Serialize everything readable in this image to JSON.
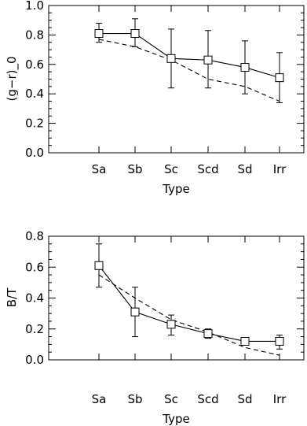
{
  "chart_data": [
    {
      "type": "line",
      "xlabel": "Type",
      "ylabel": "(g−r)_0",
      "categories": [
        "Sa",
        "Sb",
        "Sc",
        "Scd",
        "Sd",
        "Irr"
      ],
      "ylim": [
        0.0,
        1.0
      ],
      "yticks": [
        "0.0",
        "0.2",
        "0.4",
        "0.6",
        "0.8",
        "1.0"
      ],
      "series": [
        {
          "style": "solid with square markers and error bars",
          "values": [
            0.81,
            0.81,
            0.64,
            0.63,
            0.58,
            0.51
          ],
          "err_low": [
            0.75,
            0.72,
            0.44,
            0.44,
            0.4,
            0.34
          ],
          "err_high": [
            0.88,
            0.91,
            0.84,
            0.83,
            0.76,
            0.68
          ]
        },
        {
          "style": "dashed",
          "values": [
            0.77,
            0.72,
            0.63,
            0.5,
            0.45,
            0.35
          ]
        }
      ]
    },
    {
      "type": "line",
      "xlabel": "Type",
      "ylabel": "B/T",
      "categories": [
        "Sa",
        "Sb",
        "Sc",
        "Scd",
        "Sd",
        "Irr"
      ],
      "ylim": [
        0.0,
        0.8
      ],
      "yticks": [
        "0.0",
        "0.2",
        "0.4",
        "0.6",
        "0.8"
      ],
      "series": [
        {
          "style": "solid with square markers and error bars",
          "values": [
            0.61,
            0.31,
            0.23,
            0.17,
            0.12,
            0.12
          ],
          "err_low": [
            0.47,
            0.15,
            0.16,
            0.14,
            0.1,
            0.07
          ],
          "err_high": [
            0.75,
            0.47,
            0.29,
            0.2,
            0.14,
            0.16
          ]
        },
        {
          "style": "dashed",
          "values": [
            0.55,
            0.4,
            0.26,
            0.18,
            0.08,
            0.03
          ]
        }
      ]
    }
  ]
}
